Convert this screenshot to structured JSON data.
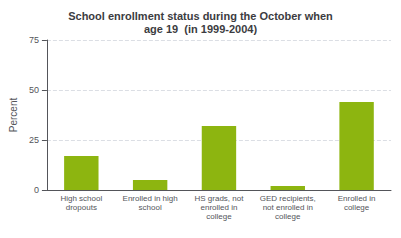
{
  "chart_data": {
    "type": "bar",
    "title": "School enrollment status during the October when\nage 19  (in 1999-2004)",
    "categories": [
      "High school\ndropouts",
      "Enrolled in high\nschool",
      "HS grads, not\nenrolled in\ncollege",
      "GED recipients,\nnot enrolled in\ncollege",
      "Enrolled in\ncollege"
    ],
    "values": [
      17,
      5,
      32,
      2,
      44
    ],
    "color": "#8db510",
    "ylabel": "Percent",
    "ylim": [
      0,
      75
    ],
    "yticks": [
      0,
      25,
      50,
      75
    ],
    "grid": true
  }
}
